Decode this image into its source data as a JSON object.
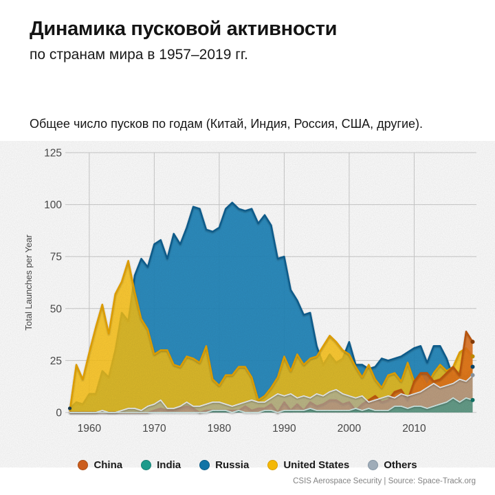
{
  "header": {
    "title": "Динамика пусковой активности",
    "subtitle": "по странам мира в 1957–2019 гг."
  },
  "description": "Общее число пусков по годам (Китай, Индия, Россия, США, другие).",
  "footer": {
    "credit": "CSIS Aerospace Security | Source: Space-Track.org"
  },
  "chart_data": {
    "type": "area",
    "overlapping_areas": true,
    "title": "",
    "xlabel": "",
    "ylabel": "Total Launches per Year",
    "ylim": [
      0,
      125
    ],
    "yticks": [
      0,
      25,
      50,
      75,
      100,
      125
    ],
    "xticks": [
      1960,
      1970,
      1980,
      1990,
      2000,
      2010
    ],
    "x_range": [
      1957,
      2019
    ],
    "grid": true,
    "grid_color": "#cdcdcd",
    "axis_label_color": "#4b4b4b",
    "legend_position": "bottom",
    "legend_order": [
      "China",
      "India",
      "Russia",
      "United States",
      "Others"
    ],
    "draw_order": [
      "Russia",
      "United States",
      "China",
      "Others",
      "India"
    ],
    "start_dot": {
      "year": 1957,
      "value": 2,
      "color": "#1b3c50"
    },
    "years": [
      1957,
      1958,
      1959,
      1960,
      1961,
      1962,
      1963,
      1964,
      1965,
      1966,
      1967,
      1968,
      1969,
      1970,
      1971,
      1972,
      1973,
      1974,
      1975,
      1976,
      1977,
      1978,
      1979,
      1980,
      1981,
      1982,
      1983,
      1984,
      1985,
      1986,
      1987,
      1988,
      1989,
      1990,
      1991,
      1992,
      1993,
      1994,
      1995,
      1996,
      1997,
      1998,
      1999,
      2000,
      2001,
      2002,
      2003,
      2004,
      2005,
      2006,
      2007,
      2008,
      2009,
      2010,
      2011,
      2012,
      2013,
      2014,
      2015,
      2016,
      2017,
      2018,
      2019
    ],
    "series": [
      {
        "name": "China",
        "legend_color": "#cb5d1d",
        "legend_ring": "#a84c15",
        "fill": "#e0701a",
        "fill_opacity": 0.88,
        "stroke": "#c2590e",
        "stroke_width": 2.4,
        "end_dot_color": "#8a3d06",
        "values": [
          0,
          0,
          0,
          0,
          0,
          0,
          0,
          0,
          0,
          0,
          0,
          0,
          0,
          1,
          2,
          1,
          1,
          2,
          3,
          2,
          0,
          1,
          1,
          1,
          1,
          1,
          1,
          3,
          1,
          2,
          2,
          4,
          0,
          5,
          1,
          4,
          1,
          5,
          3,
          4,
          6,
          6,
          4,
          5,
          1,
          4,
          6,
          8,
          5,
          6,
          10,
          11,
          6,
          15,
          19,
          19,
          15,
          16,
          19,
          22,
          18,
          39,
          34
        ]
      },
      {
        "name": "India",
        "legend_color": "#1d9b8b",
        "legend_ring": "#157f72",
        "fill": "#2a9d8f",
        "fill_opacity": 0.6,
        "stroke": "#cfe8e4",
        "stroke_width": 1.8,
        "end_dot_color": "#0f7568",
        "values": [
          0,
          0,
          0,
          0,
          0,
          0,
          0,
          0,
          0,
          0,
          0,
          0,
          0,
          0,
          0,
          0,
          0,
          0,
          0,
          0,
          0,
          0,
          1,
          1,
          1,
          0,
          1,
          0,
          0,
          0,
          1,
          1,
          0,
          1,
          1,
          1,
          1,
          2,
          1,
          1,
          1,
          1,
          1,
          1,
          2,
          1,
          2,
          1,
          1,
          1,
          3,
          3,
          2,
          3,
          3,
          2,
          3,
          4,
          5,
          7,
          5,
          7,
          6
        ]
      },
      {
        "name": "Russia",
        "legend_color": "#1174a6",
        "legend_ring": "#0b5c85",
        "fill": "#1d84ba",
        "fill_opacity": 0.93,
        "stroke": "#0c5f91",
        "stroke_width": 2.4,
        "end_dot_color": "#0b486e",
        "values": [
          2,
          5,
          4,
          9,
          9,
          20,
          17,
          30,
          48,
          44,
          66,
          74,
          70,
          81,
          83,
          74,
          86,
          81,
          89,
          99,
          98,
          88,
          87,
          89,
          98,
          101,
          98,
          97,
          98,
          91,
          95,
          90,
          74,
          75,
          59,
          54,
          47,
          48,
          32,
          23,
          28,
          24,
          26,
          34,
          23,
          23,
          21,
          22,
          26,
          25,
          26,
          27,
          29,
          31,
          32,
          24,
          32,
          32,
          26,
          17,
          20,
          17,
          22
        ]
      },
      {
        "name": "United States",
        "legend_color": "#f4b806",
        "legend_ring": "#d89e04",
        "fill": "#fdc211",
        "fill_opacity": 0.85,
        "stroke": "#e8a400",
        "stroke_width": 2.4,
        "end_dot_color": "#c78f02",
        "values": [
          1,
          23,
          16,
          29,
          41,
          52,
          38,
          57,
          63,
          73,
          58,
          45,
          40,
          28,
          30,
          30,
          23,
          22,
          27,
          26,
          24,
          32,
          16,
          13,
          18,
          18,
          22,
          22,
          17,
          6,
          8,
          12,
          17,
          27,
          20,
          28,
          23,
          26,
          27,
          32,
          37,
          34,
          30,
          28,
          22,
          17,
          23,
          16,
          12,
          18,
          19,
          15,
          24,
          15,
          18,
          13,
          19,
          23,
          20,
          22,
          29,
          31,
          27
        ]
      },
      {
        "name": "Others",
        "legend_color": "#9facb8",
        "legend_ring": "#8494a2",
        "fill": "#a8b4bf",
        "fill_opacity": 0.62,
        "stroke": "#e8ecef",
        "stroke_width": 1.8,
        "end_dot_color": "#8d99a5",
        "values": [
          0,
          0,
          0,
          0,
          0,
          1,
          0,
          0,
          1,
          2,
          2,
          1,
          3,
          4,
          6,
          2,
          2,
          3,
          5,
          3,
          3,
          4,
          5,
          5,
          4,
          3,
          4,
          5,
          6,
          5,
          5,
          7,
          9,
          8,
          9,
          7,
          8,
          7,
          9,
          8,
          10,
          11,
          9,
          8,
          7,
          8,
          5,
          6,
          7,
          8,
          7,
          9,
          8,
          9,
          10,
          12,
          14,
          12,
          13,
          14,
          16,
          15,
          18
        ]
      }
    ]
  }
}
